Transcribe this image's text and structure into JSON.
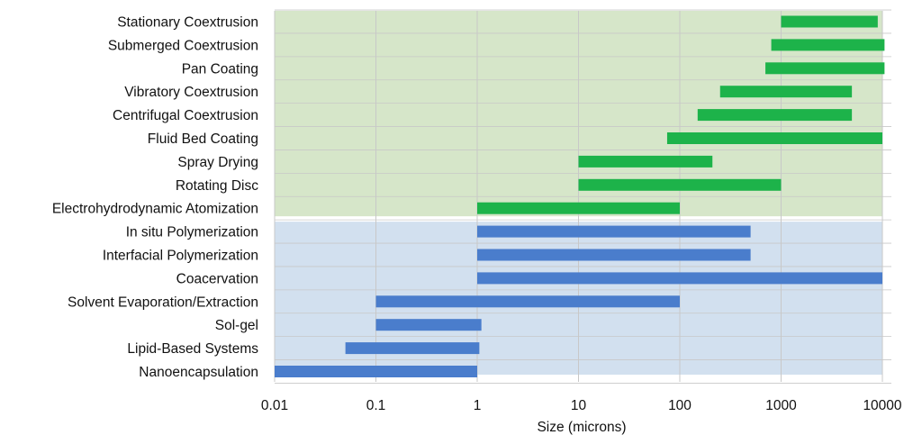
{
  "chart_data": {
    "type": "bar",
    "orientation": "horizontal-range",
    "xlabel": "Size (microns)",
    "xscale": "log",
    "xlim": [
      0.01,
      10000
    ],
    "x_ticks": [
      "0.01",
      "0.1",
      "1",
      "10",
      "100",
      "1000",
      "10000"
    ],
    "grid": true,
    "legend": "none",
    "colors": {
      "green_band": "#d6e6c9",
      "blue_band": "#d2e0ef",
      "green_bar": "#1db34a",
      "blue_bar": "#4a7dcc",
      "grid": "#c8c8c8"
    },
    "groups": [
      {
        "color": "green",
        "items": [
          {
            "label": "Stationary Coextrusion",
            "min": 1000,
            "max": 9000
          },
          {
            "label": "Submerged Coextrusion",
            "min": 800,
            "max": 10500
          },
          {
            "label": "Pan Coating",
            "min": 700,
            "max": 10500
          },
          {
            "label": "Vibratory Coextrusion",
            "min": 250,
            "max": 5000
          },
          {
            "label": "Centrifugal Coextrusion",
            "min": 150,
            "max": 5000
          },
          {
            "label": "Fluid Bed Coating",
            "min": 75,
            "max": 10000
          },
          {
            "label": "Spray Drying",
            "min": 10,
            "max": 210
          },
          {
            "label": "Rotating Disc",
            "min": 10,
            "max": 1000
          },
          {
            "label": "Electrohydrodynamic Atomization",
            "min": 1,
            "max": 100
          }
        ]
      },
      {
        "color": "blue",
        "items": [
          {
            "label": "In situ Polymerization",
            "min": 1,
            "max": 500
          },
          {
            "label": "Interfacial Polymerization",
            "min": 1,
            "max": 500
          },
          {
            "label": "Coacervation",
            "min": 1,
            "max": 10000
          },
          {
            "label": "Solvent Evaporation/Extraction",
            "min": 0.1,
            "max": 100
          },
          {
            "label": "Sol-gel",
            "min": 0.1,
            "max": 1.1
          },
          {
            "label": "Lipid-Based Systems",
            "min": 0.05,
            "max": 1.05
          },
          {
            "label": "Nanoencapsulation",
            "min": 0.01,
            "max": 1
          }
        ]
      }
    ]
  }
}
